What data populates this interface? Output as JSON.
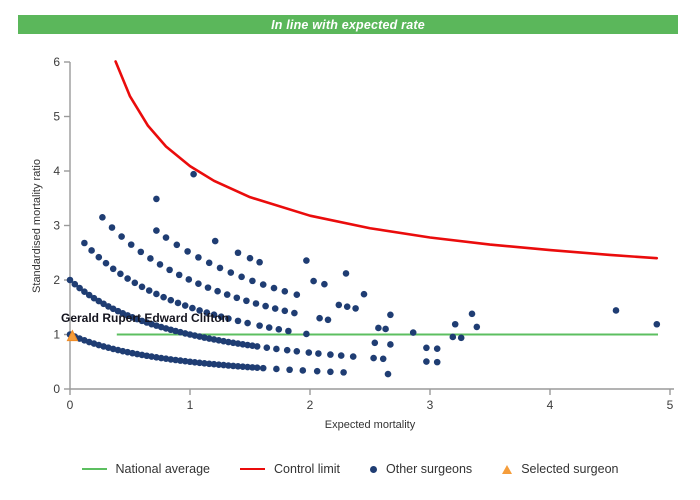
{
  "header": {
    "title": "In line with expected rate",
    "bg_color": "#5bb75b"
  },
  "colors": {
    "national_average": "#5cbf60",
    "control_limit": "#ea0c0c",
    "other_surgeons": "#1f3d73",
    "selected_surgeon_fill": "#f59d3b",
    "selected_surgeon_stroke": "#ef8b25",
    "axis_line": "#9a9a9a",
    "tick_text": "#3c3c3c"
  },
  "chart_data": {
    "type": "scatter",
    "title": "In line with expected rate",
    "xlabel": "Expected mortality",
    "ylabel": "Standardised mortality ratio",
    "xlim": [
      0,
      5
    ],
    "ylim": [
      0,
      6
    ],
    "x_ticks": [
      0,
      1,
      2,
      3,
      4,
      5
    ],
    "y_ticks": [
      0,
      1,
      2,
      3,
      4,
      5,
      6
    ],
    "grid": false,
    "legend_position": "bottom",
    "national_average": {
      "label": "National average",
      "y": 1.0,
      "x_start": 0.39,
      "x_end": 4.9
    },
    "control_limit": {
      "label": "Control limit",
      "points": [
        [
          0.38,
          6.01
        ],
        [
          0.5,
          5.37
        ],
        [
          0.65,
          4.83
        ],
        [
          0.8,
          4.45
        ],
        [
          1.0,
          4.09
        ],
        [
          1.2,
          3.82
        ],
        [
          1.5,
          3.52
        ],
        [
          2.0,
          3.18
        ],
        [
          2.5,
          2.95
        ],
        [
          3.0,
          2.78
        ],
        [
          3.5,
          2.65
        ],
        [
          4.0,
          2.55
        ],
        [
          4.5,
          2.46
        ],
        [
          4.89,
          2.4
        ]
      ]
    },
    "selected_surgeon": {
      "label": "Selected surgeon",
      "name": "Gerald Rupert Edward Clifton",
      "x": 0.02,
      "y": 0.97
    },
    "other_surgeons": {
      "label": "Other surgeons",
      "points": [
        [
          0.0,
          1.0
        ],
        [
          0.04,
          0.962
        ],
        [
          0.08,
          0.926
        ],
        [
          0.12,
          0.893
        ],
        [
          0.16,
          0.862
        ],
        [
          0.2,
          0.833
        ],
        [
          0.24,
          0.806
        ],
        [
          0.28,
          0.781
        ],
        [
          0.32,
          0.758
        ],
        [
          0.36,
          0.735
        ],
        [
          0.4,
          0.714
        ],
        [
          0.44,
          0.694
        ],
        [
          0.48,
          0.676
        ],
        [
          0.52,
          0.658
        ],
        [
          0.56,
          0.641
        ],
        [
          0.6,
          0.625
        ],
        [
          0.64,
          0.61
        ],
        [
          0.68,
          0.595
        ],
        [
          0.72,
          0.581
        ],
        [
          0.76,
          0.568
        ],
        [
          0.8,
          0.556
        ],
        [
          0.84,
          0.543
        ],
        [
          0.88,
          0.532
        ],
        [
          0.92,
          0.521
        ],
        [
          0.96,
          0.51
        ],
        [
          1.0,
          0.5
        ],
        [
          1.04,
          0.49
        ],
        [
          1.08,
          0.481
        ],
        [
          1.12,
          0.472
        ],
        [
          1.16,
          0.463
        ],
        [
          1.2,
          0.455
        ],
        [
          1.24,
          0.446
        ],
        [
          1.28,
          0.439
        ],
        [
          1.32,
          0.431
        ],
        [
          1.36,
          0.424
        ],
        [
          1.4,
          0.417
        ],
        [
          1.44,
          0.41
        ],
        [
          1.48,
          0.403
        ],
        [
          1.52,
          0.397
        ],
        [
          1.56,
          0.391
        ],
        [
          1.61,
          0.383
        ],
        [
          1.72,
          0.368
        ],
        [
          1.83,
          0.353
        ],
        [
          1.94,
          0.34
        ],
        [
          2.06,
          0.327
        ],
        [
          2.17,
          0.315
        ],
        [
          2.28,
          0.305
        ],
        [
          2.65,
          0.274
        ],
        [
          0.0,
          2.0
        ],
        [
          0.04,
          1.923
        ],
        [
          0.08,
          1.852
        ],
        [
          0.12,
          1.786
        ],
        [
          0.16,
          1.724
        ],
        [
          0.2,
          1.667
        ],
        [
          0.24,
          1.613
        ],
        [
          0.28,
          1.563
        ],
        [
          0.32,
          1.515
        ],
        [
          0.36,
          1.471
        ],
        [
          0.4,
          1.429
        ],
        [
          0.44,
          1.389
        ],
        [
          0.48,
          1.351
        ],
        [
          0.52,
          1.316
        ],
        [
          0.56,
          1.282
        ],
        [
          0.6,
          1.25
        ],
        [
          0.64,
          1.22
        ],
        [
          0.68,
          1.19
        ],
        [
          0.72,
          1.163
        ],
        [
          0.76,
          1.136
        ],
        [
          0.8,
          1.111
        ],
        [
          0.84,
          1.087
        ],
        [
          0.88,
          1.064
        ],
        [
          0.92,
          1.042
        ],
        [
          0.96,
          1.02
        ],
        [
          1.0,
          1.0
        ],
        [
          1.04,
          0.98
        ],
        [
          1.08,
          0.962
        ],
        [
          1.12,
          0.943
        ],
        [
          1.16,
          0.926
        ],
        [
          1.2,
          0.909
        ],
        [
          1.24,
          0.893
        ],
        [
          1.28,
          0.877
        ],
        [
          1.32,
          0.862
        ],
        [
          1.36,
          0.847
        ],
        [
          1.4,
          0.833
        ],
        [
          1.44,
          0.82
        ],
        [
          1.48,
          0.806
        ],
        [
          1.52,
          0.794
        ],
        [
          1.56,
          0.781
        ],
        [
          1.64,
          0.758
        ],
        [
          1.72,
          0.735
        ],
        [
          1.81,
          0.712
        ],
        [
          1.89,
          0.692
        ],
        [
          1.99,
          0.669
        ],
        [
          2.07,
          0.651
        ],
        [
          2.17,
          0.631
        ],
        [
          2.26,
          0.613
        ],
        [
          2.36,
          0.595
        ],
        [
          2.53,
          0.567
        ],
        [
          2.61,
          0.554
        ],
        [
          2.97,
          0.504
        ],
        [
          3.06,
          0.493
        ],
        [
          0.12,
          2.679
        ],
        [
          0.18,
          2.542
        ],
        [
          0.24,
          2.419
        ],
        [
          0.3,
          2.308
        ],
        [
          0.36,
          2.206
        ],
        [
          0.42,
          2.113
        ],
        [
          0.48,
          2.027
        ],
        [
          0.54,
          1.948
        ],
        [
          0.6,
          1.875
        ],
        [
          0.66,
          1.807
        ],
        [
          0.72,
          1.744
        ],
        [
          0.78,
          1.685
        ],
        [
          0.84,
          1.63
        ],
        [
          0.9,
          1.579
        ],
        [
          0.96,
          1.531
        ],
        [
          1.02,
          1.485
        ],
        [
          1.08,
          1.442
        ],
        [
          1.14,
          1.402
        ],
        [
          1.2,
          1.364
        ],
        [
          1.26,
          1.327
        ],
        [
          1.32,
          1.293
        ],
        [
          1.4,
          1.25
        ],
        [
          1.48,
          1.21
        ],
        [
          1.58,
          1.163
        ],
        [
          1.66,
          1.128
        ],
        [
          1.74,
          1.095
        ],
        [
          1.82,
          1.064
        ],
        [
          1.97,
          1.01
        ],
        [
          2.54,
          0.847
        ],
        [
          2.67,
          0.817
        ],
        [
          2.97,
          0.756
        ],
        [
          3.06,
          0.739
        ],
        [
          0.27,
          3.15
        ],
        [
          0.35,
          2.963
        ],
        [
          0.43,
          2.797
        ],
        [
          0.51,
          2.649
        ],
        [
          0.59,
          2.516
        ],
        [
          0.67,
          2.395
        ],
        [
          0.75,
          2.286
        ],
        [
          0.83,
          2.186
        ],
        [
          0.91,
          2.094
        ],
        [
          0.99,
          2.01
        ],
        [
          1.07,
          1.932
        ],
        [
          1.15,
          1.86
        ],
        [
          1.23,
          1.794
        ],
        [
          1.31,
          1.732
        ],
        [
          1.39,
          1.674
        ],
        [
          1.47,
          1.619
        ],
        [
          1.55,
          1.569
        ],
        [
          1.63,
          1.521
        ],
        [
          1.71,
          1.476
        ],
        [
          1.79,
          1.434
        ],
        [
          1.87,
          1.394
        ],
        [
          2.08,
          1.299
        ],
        [
          2.15,
          1.27
        ],
        [
          2.57,
          1.12
        ],
        [
          2.63,
          1.102
        ],
        [
          2.86,
          1.036
        ],
        [
          3.19,
          0.955
        ],
        [
          3.26,
          0.939
        ],
        [
          0.72,
          2.907
        ],
        [
          0.8,
          2.778
        ],
        [
          0.89,
          2.646
        ],
        [
          0.98,
          2.525
        ],
        [
          1.07,
          2.415
        ],
        [
          1.16,
          2.315
        ],
        [
          1.25,
          2.222
        ],
        [
          1.34,
          2.137
        ],
        [
          1.43,
          2.058
        ],
        [
          1.52,
          1.984
        ],
        [
          1.61,
          1.916
        ],
        [
          1.7,
          1.852
        ],
        [
          1.79,
          1.792
        ],
        [
          1.89,
          1.73
        ],
        [
          2.24,
          1.543
        ],
        [
          2.31,
          1.511
        ],
        [
          2.38,
          1.479
        ],
        [
          2.67,
          1.362
        ],
        [
          3.21,
          1.188
        ],
        [
          3.39,
          1.139
        ],
        [
          0.72,
          3.488
        ],
        [
          1.21,
          2.715
        ],
        [
          1.4,
          2.5
        ],
        [
          1.5,
          2.4
        ],
        [
          1.58,
          2.326
        ],
        [
          2.03,
          1.98
        ],
        [
          2.12,
          1.923
        ],
        [
          2.45,
          1.739
        ],
        [
          3.35,
          1.379
        ],
        [
          1.97,
          2.357
        ],
        [
          2.3,
          2.121
        ],
        [
          4.89,
          1.188
        ],
        [
          1.03,
          3.941
        ],
        [
          4.55,
          1.441
        ]
      ]
    }
  },
  "legend": {
    "items": [
      {
        "label": "National average",
        "type": "line",
        "color": "#5cbf60"
      },
      {
        "label": "Control limit",
        "type": "line",
        "color": "#ea0c0c"
      },
      {
        "label": "Other surgeons",
        "type": "dot",
        "color": "#1f3d73"
      },
      {
        "label": "Selected surgeon",
        "type": "triangle",
        "color": "#f59d3b"
      }
    ]
  }
}
